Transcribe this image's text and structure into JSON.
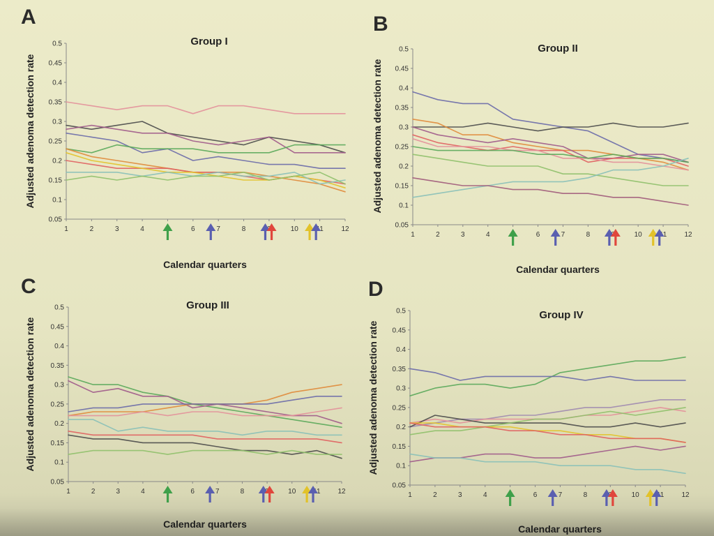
{
  "chart_data": [
    {
      "panel": "A",
      "title": "Group I",
      "type": "line",
      "xlabel": "Calendar quarters",
      "ylabel": "Adjusted adenoma detection rate",
      "x": [
        1,
        2,
        3,
        4,
        5,
        6,
        7,
        8,
        9,
        10,
        11,
        12
      ],
      "ylim": [
        0.05,
        0.5
      ],
      "yticks": [
        "0.05",
        "0.1",
        "0.15",
        "0.2",
        "0.25",
        "0.3",
        "0.35",
        "0.4",
        "0.45",
        "0.5"
      ],
      "arrows": [
        {
          "x": 5,
          "color": "#3fa04a"
        },
        {
          "x": 6.7,
          "color": "#5a5fb0"
        },
        {
          "x": 8.85,
          "color": "#5a5fb0"
        },
        {
          "x": 9.1,
          "color": "#e0463c"
        },
        {
          "x": 10.6,
          "color": "#e2c22a"
        },
        {
          "x": 10.85,
          "color": "#5a5fb0"
        }
      ],
      "series": [
        {
          "color": "#e3909a",
          "values": [
            0.35,
            0.34,
            0.33,
            0.34,
            0.34,
            0.32,
            0.34,
            0.34,
            0.33,
            0.32,
            0.32,
            0.32
          ]
        },
        {
          "color": "#4a4a4a",
          "values": [
            0.29,
            0.28,
            0.29,
            0.3,
            0.27,
            0.26,
            0.25,
            0.24,
            0.26,
            0.25,
            0.24,
            0.22
          ]
        },
        {
          "color": "#a05a8a",
          "values": [
            0.28,
            0.29,
            0.28,
            0.27,
            0.27,
            0.25,
            0.24,
            0.25,
            0.26,
            0.22,
            0.22,
            0.22
          ]
        },
        {
          "color": "#6a6aa8",
          "values": [
            0.27,
            0.26,
            0.25,
            0.22,
            0.23,
            0.2,
            0.21,
            0.2,
            0.19,
            0.19,
            0.18,
            0.18
          ]
        },
        {
          "color": "#5aa85a",
          "values": [
            0.23,
            0.22,
            0.24,
            0.23,
            0.23,
            0.23,
            0.22,
            0.22,
            0.22,
            0.24,
            0.24,
            0.24
          ]
        },
        {
          "color": "#e08a3a",
          "values": [
            0.23,
            0.21,
            0.2,
            0.19,
            0.18,
            0.17,
            0.17,
            0.17,
            0.16,
            0.15,
            0.14,
            0.12
          ]
        },
        {
          "color": "#e06060",
          "values": [
            0.2,
            0.19,
            0.18,
            0.18,
            0.18,
            0.17,
            0.17,
            0.16,
            0.15,
            0.16,
            0.15,
            0.14
          ]
        },
        {
          "color": "#e2c22a",
          "values": [
            0.22,
            0.2,
            0.19,
            0.18,
            0.17,
            0.17,
            0.16,
            0.15,
            0.15,
            0.16,
            0.15,
            0.13
          ]
        },
        {
          "color": "#88c0b8",
          "values": [
            0.17,
            0.17,
            0.17,
            0.16,
            0.17,
            0.16,
            0.17,
            0.16,
            0.16,
            0.17,
            0.14,
            0.15
          ]
        },
        {
          "color": "#8fc06a",
          "values": [
            0.15,
            0.16,
            0.15,
            0.16,
            0.15,
            0.16,
            0.16,
            0.17,
            0.15,
            0.16,
            0.17,
            0.14
          ]
        }
      ]
    },
    {
      "panel": "B",
      "title": "Group II",
      "type": "line",
      "xlabel": "Calendar quarters",
      "ylabel": "Adjusted adenoma detection rate",
      "x": [
        1,
        2,
        3,
        4,
        5,
        6,
        7,
        8,
        9,
        10,
        11,
        12
      ],
      "ylim": [
        0.05,
        0.5
      ],
      "yticks": [
        "0.05",
        "0.1",
        "0.15",
        "0.2",
        "0.25",
        "0.3",
        "0.35",
        "0.4",
        "0.45",
        "0.5"
      ],
      "arrows": [
        {
          "x": 5,
          "color": "#3fa04a"
        },
        {
          "x": 6.7,
          "color": "#5a5fb0"
        },
        {
          "x": 8.85,
          "color": "#5a5fb0"
        },
        {
          "x": 9.1,
          "color": "#e0463c"
        },
        {
          "x": 10.6,
          "color": "#e2c22a"
        },
        {
          "x": 10.85,
          "color": "#5a5fb0"
        }
      ],
      "series": [
        {
          "color": "#6a6aa8",
          "values": [
            0.39,
            0.37,
            0.36,
            0.36,
            0.32,
            0.31,
            0.3,
            0.29,
            0.26,
            0.23,
            0.22,
            0.21
          ]
        },
        {
          "color": "#4a4a4a",
          "values": [
            0.3,
            0.3,
            0.3,
            0.31,
            0.3,
            0.29,
            0.3,
            0.3,
            0.31,
            0.3,
            0.3,
            0.31
          ]
        },
        {
          "color": "#e08a3a",
          "values": [
            0.32,
            0.31,
            0.28,
            0.28,
            0.26,
            0.25,
            0.24,
            0.24,
            0.23,
            0.22,
            0.21,
            0.19
          ]
        },
        {
          "color": "#a05a8a",
          "values": [
            0.3,
            0.28,
            0.27,
            0.26,
            0.27,
            0.26,
            0.25,
            0.22,
            0.22,
            0.23,
            0.23,
            0.21
          ]
        },
        {
          "color": "#e06060",
          "values": [
            0.28,
            0.26,
            0.25,
            0.24,
            0.25,
            0.24,
            0.24,
            0.21,
            0.22,
            0.22,
            0.22,
            0.2
          ]
        },
        {
          "color": "#e3909a",
          "values": [
            0.27,
            0.25,
            0.25,
            0.25,
            0.24,
            0.24,
            0.22,
            0.22,
            0.21,
            0.21,
            0.2,
            0.19
          ]
        },
        {
          "color": "#5aa85a",
          "values": [
            0.25,
            0.24,
            0.24,
            0.24,
            0.24,
            0.23,
            0.23,
            0.22,
            0.23,
            0.22,
            0.22,
            0.21
          ]
        },
        {
          "color": "#8fc06a",
          "values": [
            0.23,
            0.22,
            0.21,
            0.2,
            0.2,
            0.2,
            0.18,
            0.18,
            0.17,
            0.16,
            0.15,
            0.15
          ]
        },
        {
          "color": "#88c0b8",
          "values": [
            0.12,
            0.13,
            0.14,
            0.15,
            0.16,
            0.16,
            0.16,
            0.17,
            0.19,
            0.19,
            0.2,
            0.22
          ]
        },
        {
          "color": "#a05a7a",
          "values": [
            0.17,
            0.16,
            0.15,
            0.15,
            0.14,
            0.14,
            0.13,
            0.13,
            0.12,
            0.12,
            0.11,
            0.1
          ]
        }
      ]
    },
    {
      "panel": "C",
      "title": "Group III",
      "type": "line",
      "xlabel": "Calendar quarters",
      "ylabel": "Adjusted adenoma detection rate",
      "x": [
        1,
        2,
        3,
        4,
        5,
        6,
        7,
        8,
        9,
        10,
        11,
        12
      ],
      "ylim": [
        0.05,
        0.5
      ],
      "yticks": [
        "0.05",
        "0.1",
        "0.15",
        "0.2",
        "0.25",
        "0.3",
        "0.35",
        "0.4",
        "0.45",
        "0.5"
      ],
      "arrows": [
        {
          "x": 5,
          "color": "#3fa04a"
        },
        {
          "x": 6.7,
          "color": "#5a5fb0"
        },
        {
          "x": 8.85,
          "color": "#5a5fb0"
        },
        {
          "x": 9.1,
          "color": "#e0463c"
        },
        {
          "x": 10.6,
          "color": "#e2c22a"
        },
        {
          "x": 10.85,
          "color": "#5a5fb0"
        }
      ],
      "series": [
        {
          "color": "#5aa85a",
          "values": [
            0.32,
            0.3,
            0.3,
            0.28,
            0.27,
            0.25,
            0.24,
            0.23,
            0.22,
            0.21,
            0.2,
            0.19
          ]
        },
        {
          "color": "#a05a8a",
          "values": [
            0.31,
            0.28,
            0.29,
            0.27,
            0.27,
            0.24,
            0.25,
            0.24,
            0.23,
            0.22,
            0.22,
            0.2
          ]
        },
        {
          "color": "#e08a3a",
          "values": [
            0.22,
            0.23,
            0.23,
            0.23,
            0.24,
            0.25,
            0.25,
            0.25,
            0.26,
            0.28,
            0.29,
            0.3
          ]
        },
        {
          "color": "#6a6aa8",
          "values": [
            0.23,
            0.24,
            0.24,
            0.25,
            0.25,
            0.25,
            0.25,
            0.25,
            0.25,
            0.26,
            0.27,
            0.27
          ]
        },
        {
          "color": "#e3909a",
          "values": [
            0.22,
            0.22,
            0.22,
            0.23,
            0.22,
            0.23,
            0.23,
            0.22,
            0.22,
            0.22,
            0.23,
            0.24
          ]
        },
        {
          "color": "#88c0b8",
          "values": [
            0.21,
            0.21,
            0.18,
            0.19,
            0.18,
            0.18,
            0.18,
            0.17,
            0.18,
            0.18,
            0.17,
            0.17
          ]
        },
        {
          "color": "#e06060",
          "values": [
            0.18,
            0.17,
            0.17,
            0.17,
            0.17,
            0.17,
            0.16,
            0.16,
            0.16,
            0.16,
            0.16,
            0.15
          ]
        },
        {
          "color": "#4a4a4a",
          "values": [
            0.17,
            0.16,
            0.16,
            0.15,
            0.15,
            0.15,
            0.14,
            0.13,
            0.13,
            0.12,
            0.13,
            0.11
          ]
        },
        {
          "color": "#8fc06a",
          "values": [
            0.12,
            0.13,
            0.13,
            0.13,
            0.12,
            0.13,
            0.13,
            0.13,
            0.12,
            0.13,
            0.12,
            0.12
          ]
        }
      ]
    },
    {
      "panel": "D",
      "title": "Group IV",
      "type": "line",
      "xlabel": "Calendar quarters",
      "ylabel": "Adjusted adenoma detection rate",
      "x": [
        1,
        2,
        3,
        4,
        5,
        6,
        7,
        8,
        9,
        10,
        11,
        12
      ],
      "ylim": [
        0.05,
        0.5
      ],
      "yticks": [
        "0.05",
        "0.1",
        "0.15",
        "0.2",
        "0.25",
        "0.3",
        "0.35",
        "0.4",
        "0.45",
        "0.5"
      ],
      "arrows": [
        {
          "x": 5,
          "color": "#3fa04a"
        },
        {
          "x": 6.7,
          "color": "#5a5fb0"
        },
        {
          "x": 8.85,
          "color": "#5a5fb0"
        },
        {
          "x": 9.1,
          "color": "#e0463c"
        },
        {
          "x": 10.6,
          "color": "#e2c22a"
        },
        {
          "x": 10.85,
          "color": "#5a5fb0"
        }
      ],
      "series": [
        {
          "color": "#5aa85a",
          "values": [
            0.28,
            0.3,
            0.31,
            0.31,
            0.3,
            0.31,
            0.34,
            0.35,
            0.36,
            0.37,
            0.37,
            0.38
          ]
        },
        {
          "color": "#6a6aa8",
          "values": [
            0.35,
            0.34,
            0.32,
            0.33,
            0.33,
            0.33,
            0.33,
            0.32,
            0.33,
            0.32,
            0.32,
            0.32
          ]
        },
        {
          "color": "#a08ab0",
          "values": [
            0.2,
            0.21,
            0.22,
            0.22,
            0.23,
            0.23,
            0.24,
            0.25,
            0.25,
            0.26,
            0.27,
            0.27
          ]
        },
        {
          "color": "#e3909a",
          "values": [
            0.21,
            0.22,
            0.21,
            0.22,
            0.22,
            0.22,
            0.22,
            0.23,
            0.23,
            0.24,
            0.25,
            0.24
          ]
        },
        {
          "color": "#4a4a4a",
          "values": [
            0.2,
            0.23,
            0.22,
            0.21,
            0.21,
            0.21,
            0.21,
            0.2,
            0.2,
            0.21,
            0.2,
            0.21
          ]
        },
        {
          "color": "#8fc06a",
          "values": [
            0.18,
            0.19,
            0.19,
            0.2,
            0.21,
            0.22,
            0.22,
            0.23,
            0.24,
            0.23,
            0.24,
            0.25
          ]
        },
        {
          "color": "#e2c22a",
          "values": [
            0.21,
            0.21,
            0.2,
            0.2,
            0.2,
            0.19,
            0.19,
            0.18,
            0.18,
            0.17,
            0.17,
            0.16
          ]
        },
        {
          "color": "#e06060",
          "values": [
            0.21,
            0.2,
            0.2,
            0.2,
            0.19,
            0.19,
            0.18,
            0.18,
            0.17,
            0.17,
            0.17,
            0.16
          ]
        },
        {
          "color": "#a05a8a",
          "values": [
            0.11,
            0.12,
            0.12,
            0.13,
            0.13,
            0.12,
            0.12,
            0.13,
            0.14,
            0.15,
            0.14,
            0.15
          ]
        },
        {
          "color": "#88c0b8",
          "values": [
            0.13,
            0.12,
            0.12,
            0.11,
            0.11,
            0.11,
            0.1,
            0.1,
            0.1,
            0.09,
            0.09,
            0.08
          ]
        }
      ]
    }
  ]
}
